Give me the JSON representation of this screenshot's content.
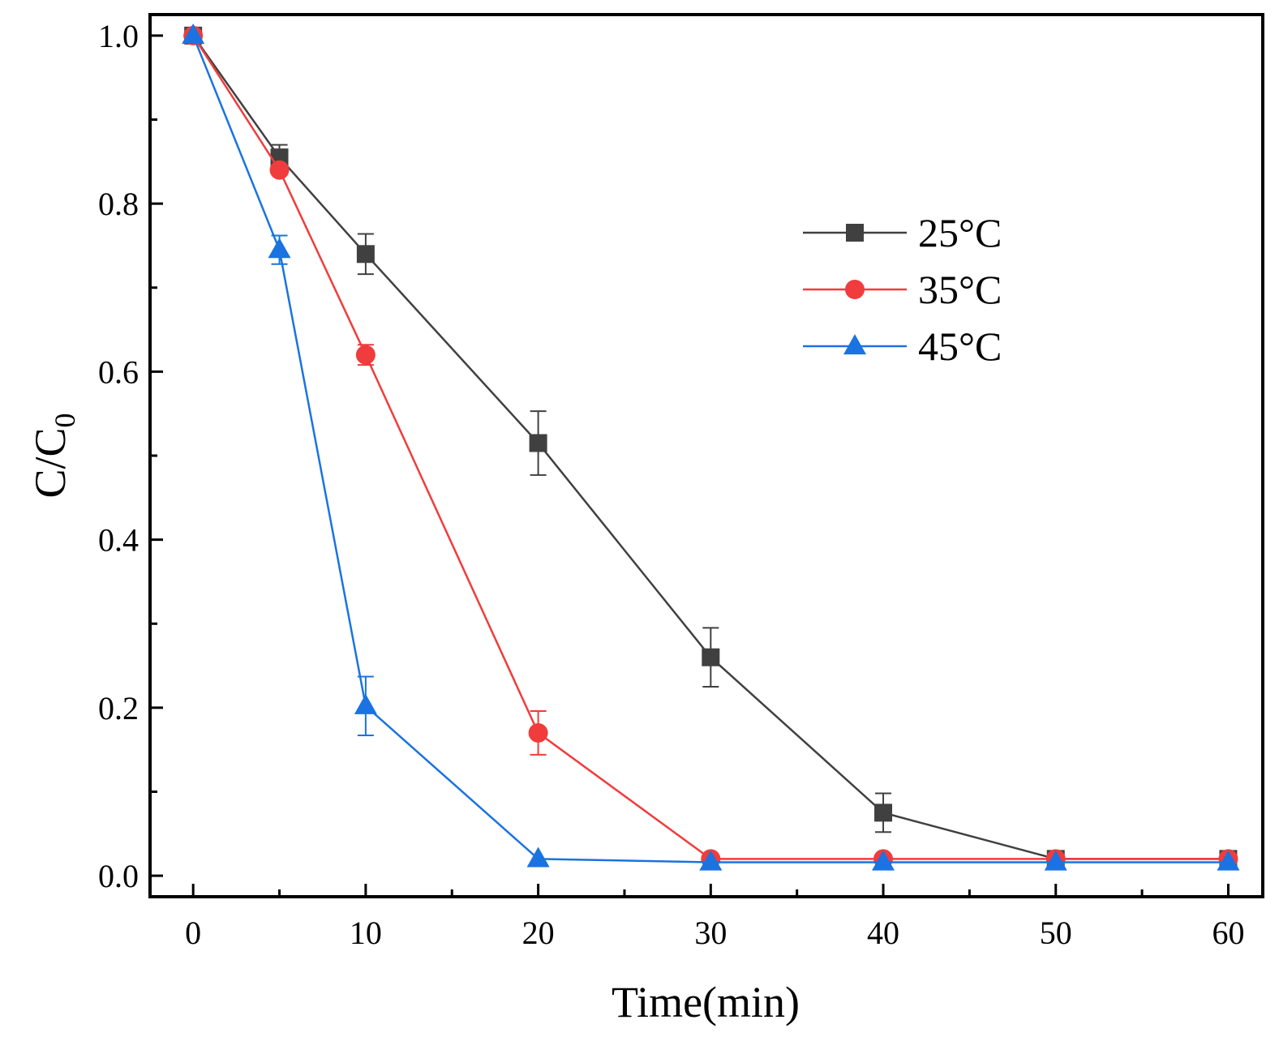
{
  "chart_data": {
    "type": "line",
    "title": "",
    "xlabel": "Time(min)",
    "ylabel_main": "C/C",
    "ylabel_sub": "0",
    "xlim": [
      -2.5,
      62
    ],
    "ylim": [
      -0.025,
      1.025
    ],
    "xticks": [
      0,
      10,
      20,
      30,
      40,
      50,
      60
    ],
    "xtick_labels": [
      "0",
      "10",
      "20",
      "30",
      "40",
      "50",
      "60"
    ],
    "xminor": [
      5,
      15,
      25,
      35,
      45,
      55
    ],
    "yticks": [
      0.0,
      0.2,
      0.4,
      0.6,
      0.8,
      1.0
    ],
    "ytick_labels": [
      "0.0",
      "0.2",
      "0.4",
      "0.6",
      "0.8",
      "1.0"
    ],
    "yminor": [
      0.1,
      0.3,
      0.5,
      0.7,
      0.9
    ],
    "grid": false,
    "legend_position": "top-right",
    "series": [
      {
        "name": "25°C",
        "color": "#404040",
        "marker": "square",
        "x": [
          0,
          5,
          10,
          20,
          30,
          40,
          50,
          60
        ],
        "y": [
          1.0,
          0.855,
          0.74,
          0.515,
          0.26,
          0.075,
          0.02,
          0.02
        ],
        "err": [
          0,
          0.015,
          0.024,
          0.038,
          0.035,
          0.023,
          0,
          0
        ]
      },
      {
        "name": "35°C",
        "color": "#f03c3c",
        "marker": "circle",
        "x": [
          0,
          5,
          10,
          20,
          30,
          40,
          50,
          60
        ],
        "y": [
          1.0,
          0.84,
          0.62,
          0.17,
          0.02,
          0.02,
          0.02,
          0.02
        ],
        "err": [
          0,
          0,
          0.012,
          0.026,
          0,
          0,
          0,
          0
        ]
      },
      {
        "name": "45°C",
        "color": "#1a73e0",
        "marker": "triangle",
        "x": [
          0,
          5,
          10,
          20,
          30,
          40,
          50,
          60
        ],
        "y": [
          1.0,
          0.745,
          0.202,
          0.02,
          0.016,
          0.016,
          0.016,
          0.016
        ],
        "err": [
          0,
          0.017,
          0.035,
          0,
          0,
          0,
          0,
          0
        ]
      }
    ]
  }
}
